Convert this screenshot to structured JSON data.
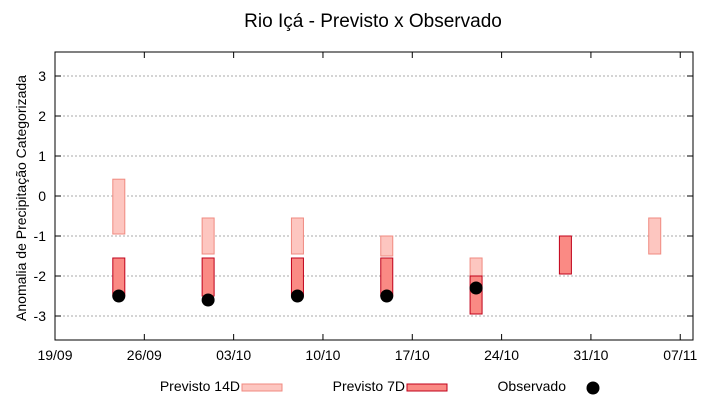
{
  "chart_data": {
    "type": "floating-bar",
    "title": "Rio Içá - Previsto x Observado",
    "xlabel": "",
    "ylabel": "Anomalia de Precipitação Categorizada",
    "ylim": [
      -3.6,
      3.6
    ],
    "yticks": [
      -3,
      -2,
      -1,
      0,
      1,
      2,
      3
    ],
    "grid": true,
    "legend_position": "bottom",
    "x_range": [
      "2025-09-19",
      "2025-11-08"
    ],
    "x_ticks": [
      "2025-09-19",
      "2025-09-26",
      "2025-10-03",
      "2025-10-10",
      "2025-10-17",
      "2025-10-24",
      "2025-10-31",
      "2025-11-07"
    ],
    "x_tick_labels": [
      "19/09",
      "26/09",
      "03/10",
      "10/10",
      "17/10",
      "24/10",
      "31/10",
      "07/11"
    ],
    "series": [
      {
        "name": "Previsto 14D",
        "kind": "range",
        "fill": "#fdc6c0",
        "stroke": "#f08a80",
        "data": [
          {
            "x": "2025-09-24",
            "low": -0.95,
            "high": 0.42
          },
          {
            "x": "2025-10-01",
            "low": -1.45,
            "high": -0.55
          },
          {
            "x": "2025-10-08",
            "low": -1.45,
            "high": -0.55
          },
          {
            "x": "2025-10-15",
            "low": -1.5,
            "high": -1.0
          },
          {
            "x": "2025-10-22",
            "low": -2.0,
            "high": -1.55
          },
          {
            "x": "2025-11-05",
            "low": -1.45,
            "high": -0.55
          }
        ]
      },
      {
        "name": "Previsto 7D",
        "kind": "range",
        "fill": "#fa8a84",
        "stroke": "#c0001a",
        "data": [
          {
            "x": "2025-09-24",
            "low": -2.5,
            "high": -1.55
          },
          {
            "x": "2025-10-01",
            "low": -2.5,
            "high": -1.55
          },
          {
            "x": "2025-10-08",
            "low": -2.5,
            "high": -1.55
          },
          {
            "x": "2025-10-15",
            "low": -2.5,
            "high": -1.55
          },
          {
            "x": "2025-10-22",
            "low": -2.95,
            "high": -2.0
          },
          {
            "x": "2025-10-29",
            "low": -1.95,
            "high": -1.0
          }
        ]
      },
      {
        "name": "Observado",
        "kind": "point",
        "color": "#000000",
        "data": [
          {
            "x": "2025-09-24",
            "y": -2.5
          },
          {
            "x": "2025-10-01",
            "y": -2.6
          },
          {
            "x": "2025-10-08",
            "y": -2.5
          },
          {
            "x": "2025-10-15",
            "y": -2.5
          },
          {
            "x": "2025-10-22",
            "y": -2.3
          }
        ]
      }
    ]
  }
}
